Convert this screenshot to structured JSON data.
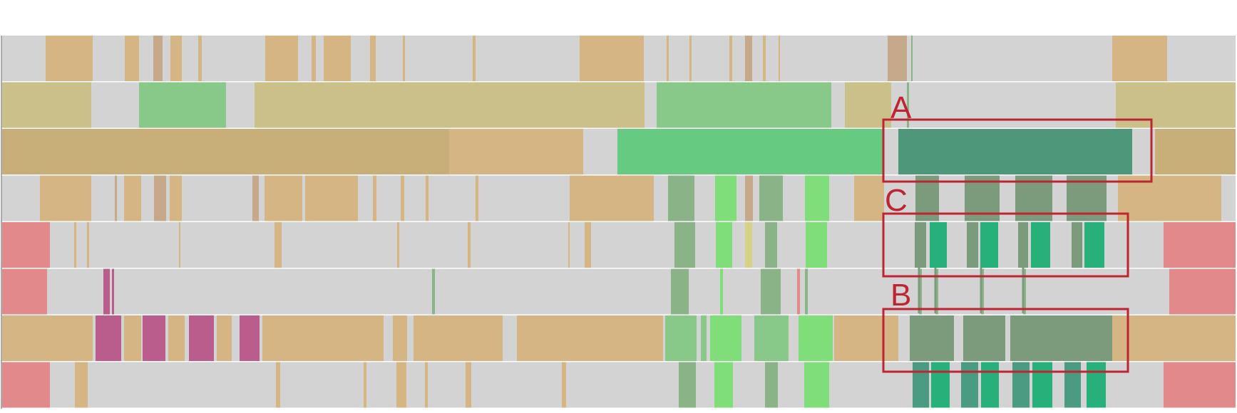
{
  "colors": {
    "background": "#ffffff",
    "lane_background": "#d3d3d3",
    "highlight": "#be2431",
    "tan": "#d4b583",
    "khaki": "#cbc089",
    "ochre": "#c8ae78",
    "brown": "#c6a98a",
    "light_green": "#88c98a",
    "bright_green": "#66cb80",
    "lime": "#7fde79",
    "sage": "#8ab388",
    "teal": "#4f977b",
    "gray_green": "#7b9b7c",
    "emerald": "#28b07b",
    "dark_teal": "#4a9b82",
    "red": "#e28a8b",
    "magenta": "#bb5d8c",
    "yellow": "#d6d285"
  },
  "highlights": [
    {
      "label": "A"
    },
    {
      "label": "C"
    },
    {
      "label": "B"
    }
  ]
}
